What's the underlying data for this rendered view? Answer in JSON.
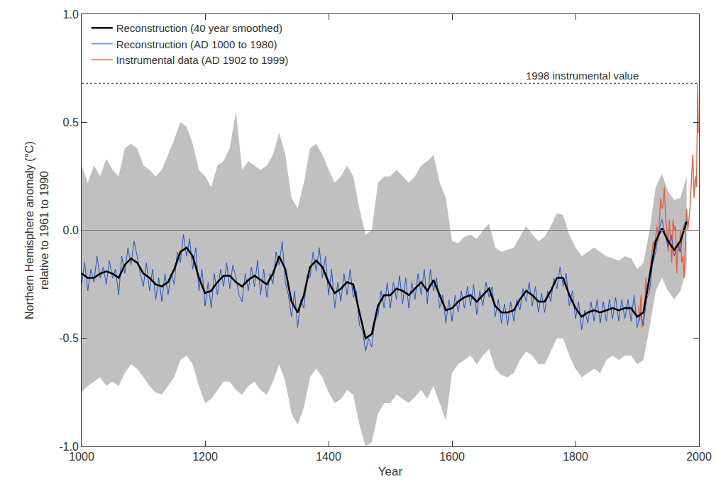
{
  "chart_data": {
    "type": "line",
    "xlabel": "Year",
    "ylabel": [
      "Northern Hemisphere anomaly (°C)",
      "relative to 1961 to 1990"
    ],
    "xlim": [
      1000,
      2000
    ],
    "xticks": [
      1000,
      1200,
      1400,
      1600,
      1800,
      2000
    ],
    "ylim": [
      -1,
      1
    ],
    "yticks": [
      {
        "value": -1,
        "label": "-1.0"
      },
      {
        "value": -0.5,
        "label": "-0.5"
      },
      {
        "value": 0,
        "label": "0.0"
      },
      {
        "value": 0.5,
        "label": "0.5"
      },
      {
        "value": 1,
        "label": "1.0"
      }
    ],
    "grid": false,
    "legend": "upper left",
    "band": {
      "color": "#c0c0c0",
      "x": [
        1000,
        1010,
        1020,
        1030,
        1040,
        1050,
        1060,
        1070,
        1080,
        1090,
        1100,
        1110,
        1120,
        1130,
        1140,
        1150,
        1160,
        1170,
        1180,
        1190,
        1200,
        1210,
        1220,
        1230,
        1240,
        1250,
        1260,
        1270,
        1280,
        1290,
        1300,
        1310,
        1320,
        1330,
        1340,
        1350,
        1360,
        1370,
        1380,
        1390,
        1400,
        1410,
        1420,
        1430,
        1440,
        1450,
        1460,
        1470,
        1480,
        1490,
        1500,
        1510,
        1520,
        1530,
        1540,
        1550,
        1560,
        1570,
        1580,
        1590,
        1600,
        1610,
        1620,
        1630,
        1640,
        1650,
        1660,
        1670,
        1680,
        1690,
        1700,
        1710,
        1720,
        1730,
        1740,
        1750,
        1760,
        1770,
        1780,
        1790,
        1800,
        1810,
        1820,
        1830,
        1840,
        1850,
        1860,
        1870,
        1880,
        1890,
        1900,
        1910,
        1920,
        1930,
        1940,
        1950,
        1960,
        1970,
        1980
      ],
      "upper": [
        0.3,
        0.22,
        0.3,
        0.25,
        0.33,
        0.28,
        0.25,
        0.38,
        0.4,
        0.38,
        0.3,
        0.28,
        0.25,
        0.28,
        0.35,
        0.42,
        0.5,
        0.48,
        0.4,
        0.28,
        0.25,
        0.2,
        0.3,
        0.32,
        0.38,
        0.55,
        0.28,
        0.32,
        0.3,
        0.28,
        0.3,
        0.35,
        0.45,
        0.35,
        0.15,
        0.1,
        0.22,
        0.38,
        0.4,
        0.35,
        0.28,
        0.22,
        0.25,
        0.3,
        0.25,
        0.1,
        -0.02,
        0.0,
        0.22,
        0.25,
        0.25,
        0.28,
        0.25,
        0.22,
        0.25,
        0.3,
        0.32,
        0.35,
        0.22,
        0.15,
        -0.05,
        -0.06,
        -0.03,
        -0.02,
        -0.04,
        0.0,
        0.03,
        -0.08,
        -0.1,
        -0.09,
        -0.08,
        -0.03,
        0.02,
        -0.02,
        -0.05,
        -0.03,
        0.02,
        0.08,
        0.07,
        -0.02,
        -0.08,
        -0.12,
        -0.1,
        -0.08,
        -0.1,
        -0.12,
        -0.13,
        -0.14,
        -0.12,
        -0.13,
        -0.18,
        -0.15,
        0.0,
        0.2,
        0.26,
        0.18,
        0.14,
        0.15,
        0.25
      ],
      "lower": [
        -0.75,
        -0.72,
        -0.7,
        -0.68,
        -0.72,
        -0.7,
        -0.72,
        -0.66,
        -0.62,
        -0.64,
        -0.68,
        -0.72,
        -0.75,
        -0.76,
        -0.72,
        -0.68,
        -0.6,
        -0.58,
        -0.62,
        -0.72,
        -0.8,
        -0.78,
        -0.74,
        -0.7,
        -0.7,
        -0.74,
        -0.76,
        -0.72,
        -0.7,
        -0.74,
        -0.76,
        -0.7,
        -0.62,
        -0.7,
        -0.85,
        -0.9,
        -0.82,
        -0.68,
        -0.64,
        -0.68,
        -0.75,
        -0.8,
        -0.78,
        -0.74,
        -0.76,
        -0.9,
        -1.0,
        -0.98,
        -0.85,
        -0.8,
        -0.8,
        -0.76,
        -0.78,
        -0.8,
        -0.77,
        -0.74,
        -0.78,
        -0.72,
        -0.8,
        -0.88,
        -0.66,
        -0.62,
        -0.6,
        -0.58,
        -0.62,
        -0.58,
        -0.55,
        -0.64,
        -0.67,
        -0.68,
        -0.66,
        -0.6,
        -0.56,
        -0.58,
        -0.62,
        -0.62,
        -0.56,
        -0.5,
        -0.5,
        -0.58,
        -0.64,
        -0.68,
        -0.66,
        -0.64,
        -0.66,
        -0.6,
        -0.58,
        -0.6,
        -0.58,
        -0.58,
        -0.62,
        -0.6,
        -0.45,
        -0.28,
        -0.22,
        -0.28,
        -0.32,
        -0.28,
        -0.18
      ]
    },
    "series": [
      {
        "name": "Instrumental data (AD 1902 to 1999)",
        "color": "#e8603c",
        "x": [
          1902,
          1904,
          1906,
          1908,
          1910,
          1912,
          1914,
          1916,
          1918,
          1920,
          1922,
          1924,
          1926,
          1928,
          1930,
          1932,
          1934,
          1936,
          1938,
          1940,
          1942,
          1944,
          1946,
          1948,
          1950,
          1952,
          1954,
          1956,
          1958,
          1960,
          1962,
          1964,
          1966,
          1968,
          1970,
          1972,
          1974,
          1976,
          1978,
          1980,
          1982,
          1984,
          1986,
          1988,
          1990,
          1992,
          1994,
          1996,
          1998,
          1999
        ],
        "values": [
          -0.35,
          -0.42,
          -0.3,
          -0.45,
          -0.4,
          -0.35,
          -0.22,
          -0.3,
          -0.25,
          -0.2,
          -0.15,
          -0.12,
          -0.05,
          -0.08,
          -0.02,
          0.02,
          -0.05,
          0.05,
          0.15,
          0.1,
          0.12,
          0.2,
          0.05,
          0.0,
          -0.1,
          0.05,
          -0.05,
          -0.15,
          0.05,
          0.0,
          0.02,
          -0.2,
          -0.05,
          -0.1,
          0.0,
          -0.15,
          -0.12,
          -0.22,
          -0.05,
          0.1,
          0.0,
          0.05,
          0.12,
          0.25,
          0.35,
          0.15,
          0.25,
          0.2,
          0.68,
          0.45
        ]
      },
      {
        "name": "Reconstruction (AD 1000 to 1980)",
        "color": "#2255cc",
        "x": [
          1000,
          1005,
          1010,
          1015,
          1020,
          1025,
          1030,
          1035,
          1040,
          1045,
          1050,
          1055,
          1060,
          1065,
          1070,
          1075,
          1080,
          1085,
          1090,
          1095,
          1100,
          1105,
          1110,
          1115,
          1120,
          1125,
          1130,
          1135,
          1140,
          1145,
          1150,
          1155,
          1160,
          1165,
          1170,
          1175,
          1180,
          1185,
          1190,
          1195,
          1200,
          1205,
          1210,
          1215,
          1220,
          1225,
          1230,
          1235,
          1240,
          1245,
          1250,
          1255,
          1260,
          1265,
          1270,
          1275,
          1280,
          1285,
          1290,
          1295,
          1300,
          1305,
          1310,
          1315,
          1320,
          1325,
          1330,
          1335,
          1340,
          1345,
          1350,
          1355,
          1360,
          1365,
          1370,
          1375,
          1380,
          1385,
          1390,
          1395,
          1400,
          1405,
          1410,
          1415,
          1420,
          1425,
          1430,
          1435,
          1440,
          1445,
          1450,
          1455,
          1460,
          1465,
          1470,
          1475,
          1480,
          1485,
          1490,
          1495,
          1500,
          1505,
          1510,
          1515,
          1520,
          1525,
          1530,
          1535,
          1540,
          1545,
          1550,
          1555,
          1560,
          1565,
          1570,
          1575,
          1580,
          1585,
          1590,
          1595,
          1600,
          1605,
          1610,
          1615,
          1620,
          1625,
          1630,
          1635,
          1640,
          1645,
          1650,
          1655,
          1660,
          1665,
          1670,
          1675,
          1680,
          1685,
          1690,
          1695,
          1700,
          1705,
          1710,
          1715,
          1720,
          1725,
          1730,
          1735,
          1740,
          1745,
          1750,
          1755,
          1760,
          1765,
          1770,
          1775,
          1780,
          1785,
          1790,
          1795,
          1800,
          1805,
          1810,
          1815,
          1820,
          1825,
          1830,
          1835,
          1840,
          1845,
          1850,
          1855,
          1860,
          1865,
          1870,
          1875,
          1880,
          1885,
          1890,
          1895,
          1900,
          1905,
          1910,
          1915,
          1920,
          1925,
          1930,
          1935,
          1940,
          1945,
          1950,
          1955,
          1960,
          1965,
          1970,
          1975,
          1980
        ],
        "values": [
          -0.25,
          -0.15,
          -0.28,
          -0.18,
          -0.24,
          -0.12,
          -0.22,
          -0.17,
          -0.25,
          -0.14,
          -0.22,
          -0.18,
          -0.3,
          -0.12,
          -0.2,
          -0.08,
          -0.16,
          -0.05,
          -0.12,
          -0.2,
          -0.26,
          -0.15,
          -0.28,
          -0.18,
          -0.32,
          -0.22,
          -0.33,
          -0.2,
          -0.3,
          -0.2,
          -0.25,
          -0.1,
          -0.15,
          -0.02,
          -0.12,
          -0.04,
          -0.18,
          -0.08,
          -0.28,
          -0.18,
          -0.35,
          -0.24,
          -0.36,
          -0.2,
          -0.3,
          -0.18,
          -0.26,
          -0.15,
          -0.27,
          -0.16,
          -0.22,
          -0.3,
          -0.33,
          -0.2,
          -0.28,
          -0.17,
          -0.26,
          -0.14,
          -0.3,
          -0.18,
          -0.31,
          -0.2,
          -0.25,
          -0.1,
          -0.16,
          -0.05,
          -0.24,
          -0.3,
          -0.4,
          -0.28,
          -0.45,
          -0.32,
          -0.36,
          -0.22,
          -0.22,
          -0.1,
          -0.19,
          -0.08,
          -0.22,
          -0.12,
          -0.3,
          -0.18,
          -0.36,
          -0.24,
          -0.33,
          -0.2,
          -0.3,
          -0.18,
          -0.31,
          -0.28,
          -0.44,
          -0.46,
          -0.56,
          -0.5,
          -0.54,
          -0.42,
          -0.4,
          -0.28,
          -0.36,
          -0.24,
          -0.36,
          -0.24,
          -0.32,
          -0.21,
          -0.34,
          -0.22,
          -0.36,
          -0.24,
          -0.32,
          -0.2,
          -0.3,
          -0.18,
          -0.34,
          -0.18,
          -0.28,
          -0.22,
          -0.36,
          -0.3,
          -0.43,
          -0.32,
          -0.42,
          -0.3,
          -0.38,
          -0.28,
          -0.36,
          -0.26,
          -0.35,
          -0.25,
          -0.39,
          -0.28,
          -0.35,
          -0.24,
          -0.31,
          -0.26,
          -0.4,
          -0.32,
          -0.43,
          -0.34,
          -0.44,
          -0.33,
          -0.42,
          -0.32,
          -0.37,
          -0.27,
          -0.33,
          -0.24,
          -0.35,
          -0.26,
          -0.38,
          -0.29,
          -0.38,
          -0.28,
          -0.33,
          -0.22,
          -0.27,
          -0.17,
          -0.26,
          -0.2,
          -0.35,
          -0.28,
          -0.41,
          -0.33,
          -0.46,
          -0.37,
          -0.43,
          -0.33,
          -0.42,
          -0.32,
          -0.43,
          -0.33,
          -0.42,
          -0.32,
          -0.41,
          -0.31,
          -0.42,
          -0.32,
          -0.41,
          -0.32,
          -0.42,
          -0.3,
          -0.45,
          -0.38,
          -0.44,
          -0.32,
          -0.28,
          -0.15,
          -0.1,
          0.0,
          0.05,
          -0.02,
          -0.08,
          -0.02,
          -0.12,
          -0.06,
          -0.1,
          0.02,
          0.05
        ]
      },
      {
        "name": "Reconstruction (40 year smoothed)",
        "color": "#000000",
        "x": [
          1000,
          1010,
          1020,
          1030,
          1040,
          1050,
          1060,
          1070,
          1080,
          1090,
          1100,
          1110,
          1120,
          1130,
          1140,
          1150,
          1160,
          1170,
          1180,
          1190,
          1200,
          1210,
          1220,
          1230,
          1240,
          1250,
          1260,
          1270,
          1280,
          1290,
          1300,
          1310,
          1320,
          1330,
          1340,
          1350,
          1360,
          1370,
          1380,
          1390,
          1400,
          1410,
          1420,
          1430,
          1440,
          1450,
          1460,
          1470,
          1480,
          1490,
          1500,
          1510,
          1520,
          1530,
          1540,
          1550,
          1560,
          1570,
          1580,
          1590,
          1600,
          1610,
          1620,
          1630,
          1640,
          1650,
          1660,
          1670,
          1680,
          1690,
          1700,
          1710,
          1720,
          1730,
          1740,
          1750,
          1760,
          1770,
          1780,
          1790,
          1800,
          1810,
          1820,
          1830,
          1840,
          1850,
          1860,
          1870,
          1880,
          1890,
          1900,
          1910,
          1920,
          1930,
          1940,
          1950,
          1960,
          1970,
          1980
        ],
        "values": [
          -0.2,
          -0.22,
          -0.22,
          -0.2,
          -0.19,
          -0.2,
          -0.22,
          -0.16,
          -0.13,
          -0.15,
          -0.2,
          -0.22,
          -0.25,
          -0.26,
          -0.24,
          -0.18,
          -0.1,
          -0.08,
          -0.12,
          -0.22,
          -0.29,
          -0.28,
          -0.24,
          -0.21,
          -0.21,
          -0.24,
          -0.26,
          -0.23,
          -0.21,
          -0.23,
          -0.25,
          -0.2,
          -0.12,
          -0.18,
          -0.33,
          -0.38,
          -0.3,
          -0.17,
          -0.14,
          -0.17,
          -0.24,
          -0.29,
          -0.27,
          -0.24,
          -0.25,
          -0.38,
          -0.5,
          -0.48,
          -0.35,
          -0.3,
          -0.3,
          -0.27,
          -0.28,
          -0.3,
          -0.27,
          -0.24,
          -0.28,
          -0.23,
          -0.3,
          -0.37,
          -0.36,
          -0.33,
          -0.31,
          -0.3,
          -0.33,
          -0.3,
          -0.27,
          -0.35,
          -0.38,
          -0.38,
          -0.37,
          -0.32,
          -0.28,
          -0.3,
          -0.33,
          -0.33,
          -0.28,
          -0.22,
          -0.22,
          -0.3,
          -0.36,
          -0.4,
          -0.38,
          -0.37,
          -0.38,
          -0.37,
          -0.36,
          -0.37,
          -0.36,
          -0.36,
          -0.4,
          -0.38,
          -0.22,
          -0.05,
          0.01,
          -0.05,
          -0.09,
          -0.05,
          0.04
        ]
      }
    ],
    "reference_lines": [
      {
        "y": 0,
        "line_style": "solid"
      },
      {
        "y": 0.68,
        "line_style": "dotted",
        "label": "1998 instrumental value"
      }
    ]
  }
}
